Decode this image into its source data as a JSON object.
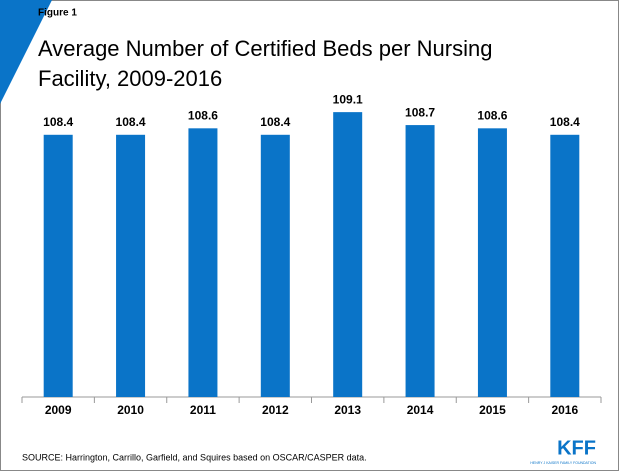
{
  "figure_label": "Figure 1",
  "chart_data": {
    "type": "bar",
    "title": "Average Number of Certified Beds per Nursing Facility, 2009-2016",
    "categories": [
      "2009",
      "2010",
      "2011",
      "2012",
      "2013",
      "2014",
      "2015",
      "2016"
    ],
    "values": [
      108.4,
      108.4,
      108.6,
      108.4,
      109.1,
      108.7,
      108.6,
      108.4
    ],
    "color": "#0a74c8",
    "ylim": [
      100.3,
      110
    ]
  },
  "source": "SOURCE: Harrington, Carrillo, Garfield, and Squires based on OSCAR/CASPER data.",
  "logo": {
    "name": "KFF",
    "tagline": "HENRY J KAISER FAMILY FOUNDATION"
  }
}
